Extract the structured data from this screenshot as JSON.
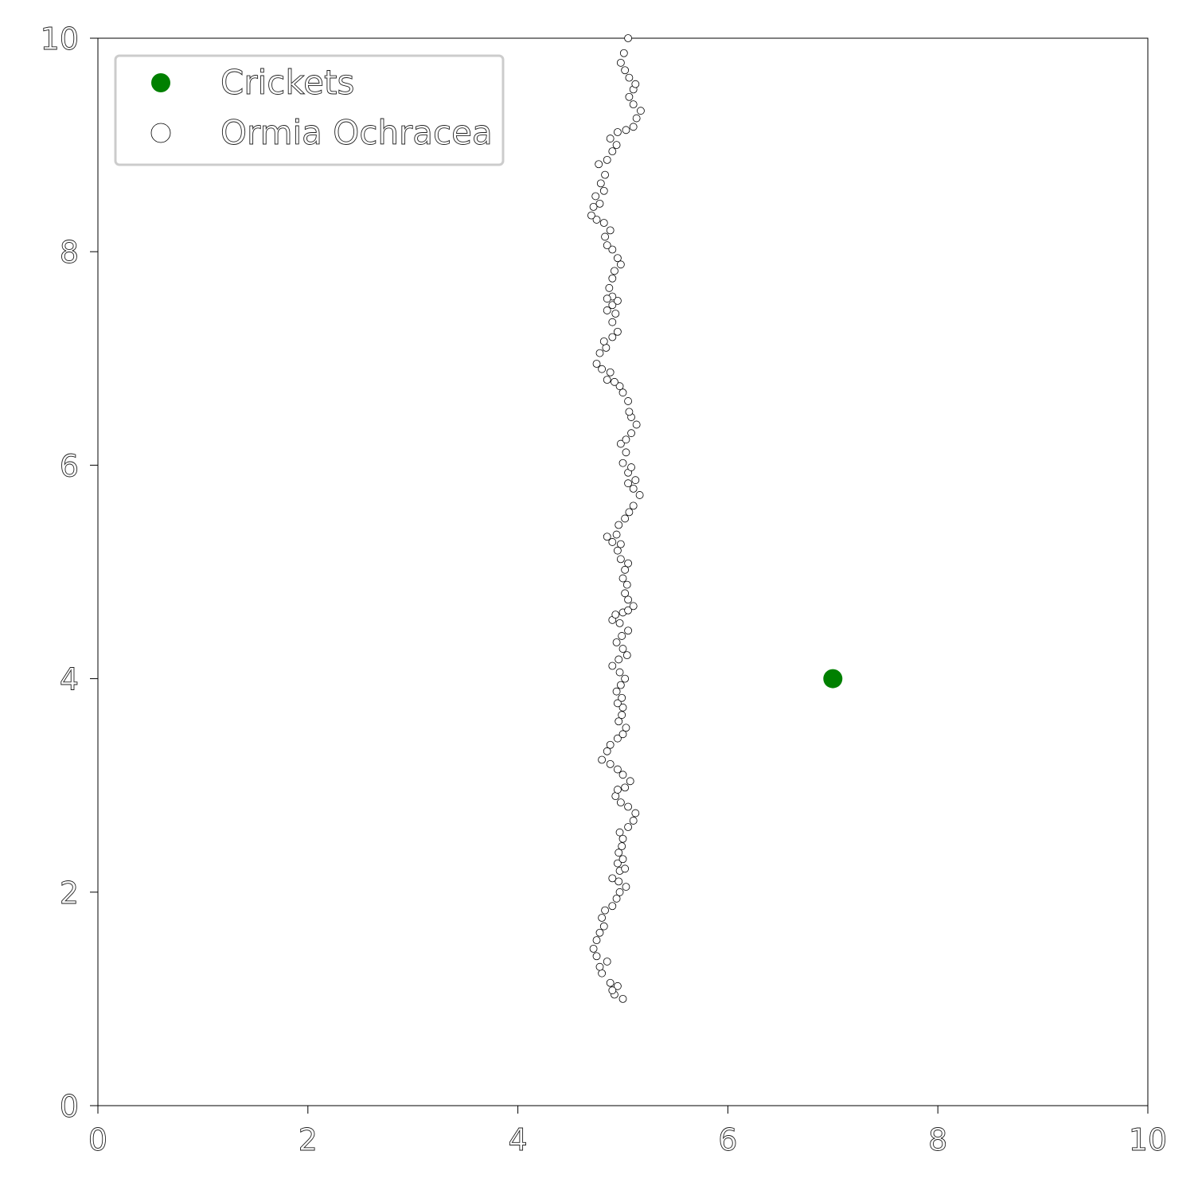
{
  "chart_data": {
    "type": "scatter",
    "title": "",
    "xlabel": "",
    "ylabel": "",
    "xlim": [
      0,
      10
    ],
    "ylim": [
      0,
      10
    ],
    "xticks": [
      0,
      2,
      4,
      6,
      8,
      10
    ],
    "yticks": [
      0,
      2,
      4,
      6,
      8,
      10
    ],
    "xtick_labels": [
      "0",
      "2",
      "4",
      "6",
      "8",
      "10"
    ],
    "ytick_labels": [
      "0",
      "2",
      "4",
      "6",
      "8",
      "10"
    ],
    "grid": false,
    "legend": {
      "position": "top-left"
    },
    "series": [
      {
        "name": "Crickets",
        "marker": "filled-circle",
        "color": "#008000",
        "points": [
          {
            "x": 7.0,
            "y": 4.0,
            "opacity": 1.0
          },
          {
            "x": 2.0,
            "y": 9.0,
            "opacity": 0.2
          }
        ]
      },
      {
        "name": "Ormia Ochracea",
        "marker": "hollow-circle",
        "color": "#000000",
        "points": [
          [
            5.0,
            1.0
          ],
          [
            4.92,
            1.04
          ],
          [
            4.95,
            1.12
          ],
          [
            4.9,
            1.08
          ],
          [
            4.88,
            1.15
          ],
          [
            4.8,
            1.24
          ],
          [
            4.85,
            1.35
          ],
          [
            4.78,
            1.3
          ],
          [
            4.75,
            1.4
          ],
          [
            4.72,
            1.47
          ],
          [
            4.75,
            1.55
          ],
          [
            4.78,
            1.62
          ],
          [
            4.82,
            1.68
          ],
          [
            4.8,
            1.76
          ],
          [
            4.83,
            1.83
          ],
          [
            4.9,
            1.87
          ],
          [
            4.94,
            1.94
          ],
          [
            4.97,
            2.0
          ],
          [
            5.03,
            2.05
          ],
          [
            4.96,
            2.1
          ],
          [
            4.9,
            2.13
          ],
          [
            4.97,
            2.2
          ],
          [
            5.02,
            2.22
          ],
          [
            4.95,
            2.27
          ],
          [
            5.0,
            2.31
          ],
          [
            4.96,
            2.37
          ],
          [
            4.99,
            2.43
          ],
          [
            5.0,
            2.5
          ],
          [
            4.97,
            2.56
          ],
          [
            5.05,
            2.61
          ],
          [
            5.1,
            2.67
          ],
          [
            5.12,
            2.74
          ],
          [
            5.05,
            2.8
          ],
          [
            4.98,
            2.84
          ],
          [
            4.93,
            2.9
          ],
          [
            4.95,
            2.96
          ],
          [
            5.02,
            2.98
          ],
          [
            5.07,
            3.04
          ],
          [
            5.0,
            3.1
          ],
          [
            4.95,
            3.15
          ],
          [
            4.88,
            3.2
          ],
          [
            4.8,
            3.24
          ],
          [
            4.85,
            3.32
          ],
          [
            4.88,
            3.38
          ],
          [
            4.95,
            3.44
          ],
          [
            5.0,
            3.48
          ],
          [
            5.03,
            3.54
          ],
          [
            4.96,
            3.6
          ],
          [
            4.99,
            3.66
          ],
          [
            5.0,
            3.73
          ],
          [
            4.95,
            3.77
          ],
          [
            4.99,
            3.82
          ],
          [
            4.94,
            3.88
          ],
          [
            4.98,
            3.94
          ],
          [
            5.02,
            4.0
          ],
          [
            4.97,
            4.06
          ],
          [
            4.9,
            4.12
          ],
          [
            4.96,
            4.18
          ],
          [
            5.04,
            4.22
          ],
          [
            5.0,
            4.28
          ],
          [
            4.94,
            4.34
          ],
          [
            4.99,
            4.4
          ],
          [
            5.05,
            4.45
          ],
          [
            4.97,
            4.52
          ],
          [
            4.9,
            4.55
          ],
          [
            4.93,
            4.6
          ],
          [
            5.0,
            4.62
          ],
          [
            5.05,
            4.64
          ],
          [
            5.1,
            4.68
          ],
          [
            5.05,
            4.74
          ],
          [
            5.02,
            4.8
          ],
          [
            5.04,
            4.88
          ],
          [
            5.0,
            4.94
          ],
          [
            5.02,
            5.02
          ],
          [
            5.05,
            5.08
          ],
          [
            4.98,
            5.12
          ],
          [
            4.95,
            5.2
          ],
          [
            4.98,
            5.26
          ],
          [
            4.9,
            5.28
          ],
          [
            4.94,
            5.35
          ],
          [
            4.85,
            5.33
          ],
          [
            4.96,
            5.44
          ],
          [
            5.02,
            5.5
          ],
          [
            5.06,
            5.56
          ],
          [
            5.1,
            5.62
          ],
          [
            5.16,
            5.72
          ],
          [
            5.1,
            5.78
          ],
          [
            5.12,
            5.86
          ],
          [
            5.05,
            5.83
          ],
          [
            5.05,
            5.93
          ],
          [
            5.08,
            5.98
          ],
          [
            5.0,
            6.02
          ],
          [
            5.03,
            6.12
          ],
          [
            4.98,
            6.2
          ],
          [
            5.03,
            6.24
          ],
          [
            5.08,
            6.3
          ],
          [
            5.13,
            6.38
          ],
          [
            5.08,
            6.45
          ],
          [
            5.06,
            6.5
          ],
          [
            5.05,
            6.6
          ],
          [
            5.0,
            6.68
          ],
          [
            4.97,
            6.74
          ],
          [
            4.92,
            6.78
          ],
          [
            4.85,
            6.8
          ],
          [
            4.88,
            6.87
          ],
          [
            4.8,
            6.9
          ],
          [
            4.75,
            6.95
          ],
          [
            4.78,
            7.05
          ],
          [
            4.84,
            7.1
          ],
          [
            4.82,
            7.16
          ],
          [
            4.9,
            7.2
          ],
          [
            4.95,
            7.25
          ],
          [
            4.9,
            7.34
          ],
          [
            4.93,
            7.42
          ],
          [
            4.85,
            7.45
          ],
          [
            4.9,
            7.5
          ],
          [
            4.95,
            7.54
          ],
          [
            4.9,
            7.58
          ],
          [
            4.85,
            7.56
          ],
          [
            4.87,
            7.66
          ],
          [
            4.9,
            7.75
          ],
          [
            4.92,
            7.82
          ],
          [
            4.98,
            7.88
          ],
          [
            4.95,
            7.94
          ],
          [
            4.9,
            8.02
          ],
          [
            4.85,
            8.06
          ],
          [
            4.83,
            8.14
          ],
          [
            4.88,
            8.2
          ],
          [
            4.82,
            8.27
          ],
          [
            4.75,
            8.3
          ],
          [
            4.7,
            8.34
          ],
          [
            4.72,
            8.42
          ],
          [
            4.78,
            8.45
          ],
          [
            4.74,
            8.52
          ],
          [
            4.82,
            8.57
          ],
          [
            4.79,
            8.64
          ],
          [
            4.83,
            8.72
          ],
          [
            4.77,
            8.82
          ],
          [
            4.85,
            8.86
          ],
          [
            4.9,
            8.94
          ],
          [
            4.94,
            9.0
          ],
          [
            4.88,
            9.06
          ],
          [
            4.95,
            9.12
          ],
          [
            5.03,
            9.14
          ],
          [
            5.1,
            9.17
          ],
          [
            5.13,
            9.25
          ],
          [
            5.17,
            9.32
          ],
          [
            5.1,
            9.38
          ],
          [
            5.06,
            9.45
          ],
          [
            5.1,
            9.52
          ],
          [
            5.12,
            9.57
          ],
          [
            5.06,
            9.63
          ],
          [
            5.02,
            9.7
          ],
          [
            4.98,
            9.77
          ],
          [
            5.01,
            9.86
          ],
          [
            5.05,
            10.0
          ]
        ]
      }
    ]
  }
}
